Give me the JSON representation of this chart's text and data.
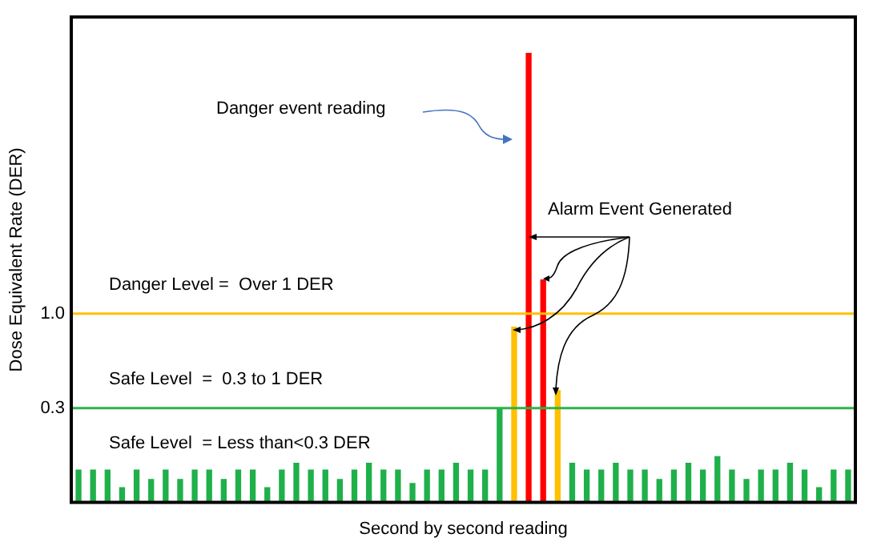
{
  "chart_data": {
    "type": "bar",
    "xlabel": "Second by second reading",
    "ylabel": "Dose Equivalent Rate (DER)",
    "categories": [
      null,
      null,
      null,
      null,
      null,
      null,
      null,
      null,
      null,
      null,
      null,
      null,
      null,
      null,
      null,
      null,
      null,
      null,
      null,
      null,
      null,
      null,
      null,
      null,
      null,
      null,
      null,
      null,
      null,
      null,
      null,
      null,
      null,
      null,
      null,
      null,
      null,
      null,
      null,
      null,
      null,
      null,
      null,
      null,
      null,
      null,
      null,
      null,
      null,
      null,
      null,
      null,
      null,
      null
    ],
    "values": [
      0.24,
      0.24,
      0.24,
      0.11,
      0.24,
      0.17,
      0.24,
      0.17,
      0.24,
      0.24,
      0.17,
      0.24,
      0.24,
      0.11,
      0.24,
      0.29,
      0.24,
      0.24,
      0.17,
      0.24,
      0.29,
      0.24,
      0.24,
      0.14,
      0.24,
      0.24,
      0.29,
      0.24,
      0.24,
      0.7,
      1.3,
      3.33,
      1.65,
      0.83,
      0.29,
      0.24,
      0.24,
      0.29,
      0.24,
      0.24,
      0.17,
      0.24,
      0.29,
      0.24,
      0.34,
      0.24,
      0.17,
      0.24,
      0.24,
      0.29,
      0.24,
      0.11,
      0.24,
      0.24
    ],
    "base": [
      -0.4,
      -0.4,
      -0.4,
      -0.4,
      -0.4,
      -0.4,
      -0.4,
      -0.4,
      -0.4,
      -0.4,
      -0.4,
      -0.4,
      -0.4,
      -0.4,
      -0.4,
      -0.4,
      -0.4,
      -0.4,
      -0.4,
      -0.4,
      -0.4,
      -0.4,
      -0.4,
      -0.4,
      -0.4,
      -0.4,
      -0.4,
      -0.4,
      -0.4,
      -0.4,
      -0.4,
      -0.4,
      -0.4,
      -0.4,
      -0.4,
      -0.4,
      -0.4,
      -0.4,
      -0.4,
      -0.4,
      -0.4,
      -0.4,
      -0.4,
      -0.4,
      -0.4,
      -0.4,
      -0.4,
      -0.4,
      -0.4,
      -0.4,
      -0.4,
      -0.4,
      -0.4,
      -0.4
    ],
    "colors": [
      "#1fb04a",
      "#1fb04a",
      "#1fb04a",
      "#1fb04a",
      "#1fb04a",
      "#1fb04a",
      "#1fb04a",
      "#1fb04a",
      "#1fb04a",
      "#1fb04a",
      "#1fb04a",
      "#1fb04a",
      "#1fb04a",
      "#1fb04a",
      "#1fb04a",
      "#1fb04a",
      "#1fb04a",
      "#1fb04a",
      "#1fb04a",
      "#1fb04a",
      "#1fb04a",
      "#1fb04a",
      "#1fb04a",
      "#1fb04a",
      "#1fb04a",
      "#1fb04a",
      "#1fb04a",
      "#1fb04a",
      "#1fb04a",
      "#1fb04a",
      "#ffc000",
      "#ff0000",
      "#ff0000",
      "#ffc000",
      "#1fb04a",
      "#1fb04a",
      "#1fb04a",
      "#1fb04a",
      "#1fb04a",
      "#1fb04a",
      "#1fb04a",
      "#1fb04a",
      "#1fb04a",
      "#1fb04a",
      "#1fb04a",
      "#1fb04a",
      "#1fb04a",
      "#1fb04a",
      "#1fb04a",
      "#1fb04a",
      "#1fb04a",
      "#1fb04a",
      "#1fb04a",
      "#1fb04a"
    ],
    "ylim": [
      -0.4,
      3.2
    ],
    "yticks": [
      0.3,
      {
        "value": 1,
        "label": "1.0"
      }
    ],
    "tick_labels": "y",
    "grid": false,
    "legend": false,
    "ref_lines": [
      {
        "axis": "y",
        "value": 1,
        "label": "Danger Level =  Over 1 DER",
        "color": "#ffc000"
      },
      {
        "axis": "y",
        "value": 0.3,
        "label": "Safe Level  =  0.3 to 1 DER",
        "color": "#2db34a"
      }
    ],
    "annotations": [
      "Safe Level  = Less than<0.3 DER",
      "Danger event reading",
      "Alarm Event Generated"
    ]
  }
}
